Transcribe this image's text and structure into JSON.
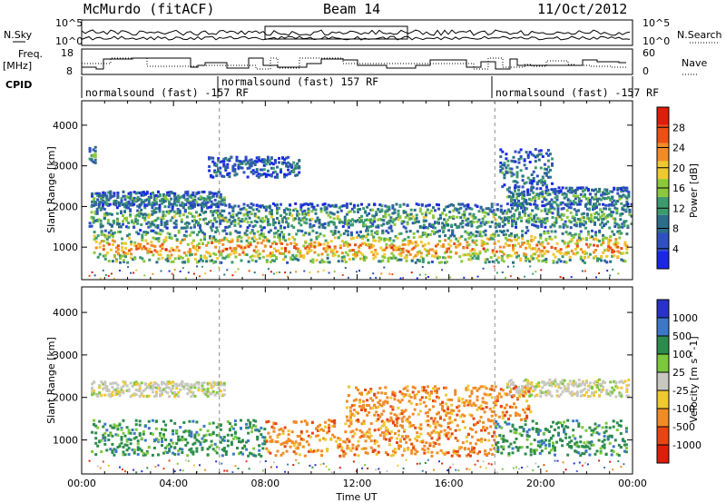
{
  "header": {
    "station": "McMurdo (fitACF)",
    "beam": "Beam 14",
    "date": "11/Oct/2012"
  },
  "top_panels": {
    "noise_left_label": "N.Sky",
    "noise_right_label": "N.Search",
    "noise_ticks_left": [
      "10^5",
      "10^0"
    ],
    "noise_ticks_right": [
      "10^5",
      "10^0"
    ],
    "freq_label_1": "Freq.",
    "freq_label_2": "[MHz]",
    "freq_ticks": [
      "18",
      "8"
    ],
    "nave_label": "Nave",
    "nave_ticks": [
      "60",
      "0"
    ],
    "cpid_label": "CPID",
    "cpid_segments": [
      {
        "label": "normalsound (fast) -157 RF",
        "start_hour": 0.0,
        "end_hour": 6.0
      },
      {
        "label": "normalsound (fast) 157 RF",
        "start_hour": 6.0,
        "end_hour": 18.0
      },
      {
        "label": "normalsound (fast) -157 RF",
        "start_hour": 18.0,
        "end_hour": 24.0
      }
    ]
  },
  "chart_data": [
    {
      "type": "heatmap",
      "name": "power",
      "xlabel": "",
      "ylabel": "Slant Range [km]",
      "xlim": [
        0,
        24
      ],
      "ylim": [
        200,
        4600
      ],
      "yticks": [
        "1000",
        "2000",
        "3000",
        "4000"
      ],
      "colorbar_label": "Power [dB]",
      "colorbar_ticks": [
        "4",
        "8",
        "12",
        "16",
        "20",
        "24",
        "28"
      ],
      "colorbar_colors": [
        "#1a28e6",
        "#2f50c0",
        "#2c6e8a",
        "#3c9a6e",
        "#8cc83c",
        "#f0c832",
        "#f08c28",
        "#eb5014",
        "#dc1e0a"
      ],
      "scatter_bands": [
        {
          "range_km": [
            3050,
            3550
          ],
          "hours": [
            0.3,
            0.6
          ],
          "level": 0.35
        },
        {
          "range_km": [
            2050,
            2400
          ],
          "hours": [
            0.4,
            6.2
          ],
          "level": 0.35
        },
        {
          "range_km": [
            2750,
            3250
          ],
          "hours": [
            5.5,
            9.5
          ],
          "level": 0.25
        },
        {
          "range_km": [
            2050,
            2500
          ],
          "hours": [
            18.5,
            23.8
          ],
          "level": 0.35
        },
        {
          "range_km": [
            2500,
            3450
          ],
          "hours": [
            18.2,
            20.5
          ],
          "level": 0.3
        },
        {
          "range_km": [
            1500,
            2100
          ],
          "hours": [
            0.3,
            23.9
          ],
          "level": 0.45
        },
        {
          "range_km": [
            650,
            1450
          ],
          "hours": [
            0.5,
            23.7
          ],
          "level": 0.8
        }
      ]
    },
    {
      "type": "heatmap",
      "name": "velocity",
      "xlabel": "Time UT",
      "ylabel": "Slant Range [km]",
      "xlim": [
        0,
        24
      ],
      "ylim": [
        200,
        4600
      ],
      "yticks": [
        "1000",
        "2000",
        "3000",
        "4000"
      ],
      "xticks": [
        "00:00",
        "04:00",
        "08:00",
        "12:00",
        "16:00",
        "20:00",
        "00:00"
      ],
      "colorbar_label": "Velocity [m s^-1]",
      "colorbar_ticks": [
        "1000",
        "500",
        "100",
        "25",
        "-25",
        "-100",
        "-500",
        "-1000"
      ],
      "colorbar_colors": [
        "#2832c8",
        "#3c78c8",
        "#2c8c4c",
        "#7cc83c",
        "#c8c8c0",
        "#f0c832",
        "#f08c28",
        "#e64614",
        "#dc1e0a"
      ],
      "scatter_bands": [
        {
          "range_km": [
            2050,
            2400
          ],
          "hours": [
            0.4,
            6.2
          ],
          "color_index": 4
        },
        {
          "range_km": [
            2050,
            2450
          ],
          "hours": [
            18.5,
            23.8
          ],
          "color_index": 4
        },
        {
          "range_km": [
            650,
            1500
          ],
          "hours": [
            0.4,
            8.0
          ],
          "color_index": 2
        },
        {
          "range_km": [
            650,
            1500
          ],
          "hours": [
            8.0,
            18.0
          ],
          "color_index": 6
        },
        {
          "range_km": [
            650,
            1500
          ],
          "hours": [
            18.0,
            23.7
          ],
          "color_index": 2
        },
        {
          "range_km": [
            1500,
            2300
          ],
          "hours": [
            11.5,
            19.5
          ],
          "color_index": 6
        }
      ]
    }
  ]
}
